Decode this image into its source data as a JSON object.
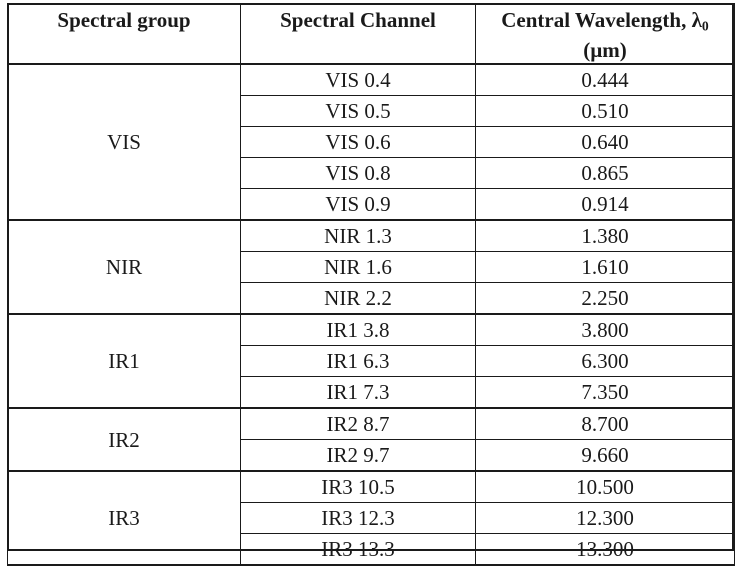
{
  "table": {
    "headers": {
      "group": "Spectral group",
      "channel": "Spectral Channel",
      "wavelength_line1": "Central Wavelength, λ",
      "wavelength_sub": "0",
      "wavelength_line2": "(µm)"
    },
    "groups": [
      {
        "name": "VIS",
        "rows": [
          {
            "channel": "VIS 0.4",
            "wavelength": "0.444"
          },
          {
            "channel": "VIS 0.5",
            "wavelength": "0.510"
          },
          {
            "channel": "VIS 0.6",
            "wavelength": "0.640"
          },
          {
            "channel": "VIS 0.8",
            "wavelength": "0.865"
          },
          {
            "channel": "VIS 0.9",
            "wavelength": "0.914"
          }
        ]
      },
      {
        "name": "NIR",
        "rows": [
          {
            "channel": "NIR 1.3",
            "wavelength": "1.380"
          },
          {
            "channel": "NIR 1.6",
            "wavelength": "1.610"
          },
          {
            "channel": "NIR 2.2",
            "wavelength": "2.250"
          }
        ]
      },
      {
        "name": "IR1",
        "rows": [
          {
            "channel": "IR1 3.8",
            "wavelength": "3.800"
          },
          {
            "channel": "IR1 6.3",
            "wavelength": "6.300"
          },
          {
            "channel": "IR1 7.3",
            "wavelength": "7.350"
          }
        ]
      },
      {
        "name": "IR2",
        "rows": [
          {
            "channel": "IR2 8.7",
            "wavelength": "8.700"
          },
          {
            "channel": "IR2 9.7",
            "wavelength": "9.660"
          }
        ]
      },
      {
        "name": "IR3",
        "rows": [
          {
            "channel": "IR3 10.5",
            "wavelength": "10.500"
          },
          {
            "channel": "IR3 12.3",
            "wavelength": "12.300"
          },
          {
            "channel": "IR3 13.3",
            "wavelength": "13.300"
          }
        ]
      }
    ]
  }
}
